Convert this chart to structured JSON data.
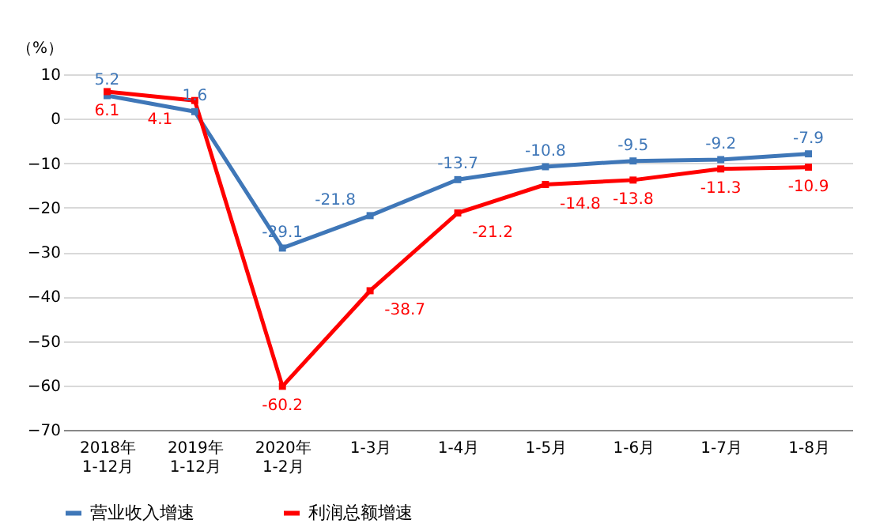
{
  "chart_data": {
    "type": "line",
    "ylabel": "（%）",
    "categories": [
      "2018年\n1-12月",
      "2019年\n1-12月",
      "2020年\n1-2月",
      "1-3月",
      "1-4月",
      "1-5月",
      "1-6月",
      "1-7月",
      "1-8月"
    ],
    "series": [
      {
        "name": "营业收入增速",
        "color": "#3f77b8",
        "values": [
          5.2,
          1.6,
          -29.1,
          -21.8,
          -13.7,
          -10.8,
          -9.5,
          -9.2,
          -7.9
        ]
      },
      {
        "name": "利润总额增速",
        "color": "#ff0000",
        "values": [
          6.1,
          4.1,
          -60.2,
          -38.7,
          -21.2,
          -14.8,
          -13.8,
          -11.3,
          -10.9
        ]
      }
    ],
    "ylim": [
      -70,
      10
    ],
    "yticks": [
      -70,
      -60,
      -50,
      -40,
      -30,
      -20,
      -10,
      0,
      10
    ],
    "grid": "y",
    "legend": "bottom",
    "marker": "square",
    "line_style": "solid",
    "data_labels": true
  }
}
